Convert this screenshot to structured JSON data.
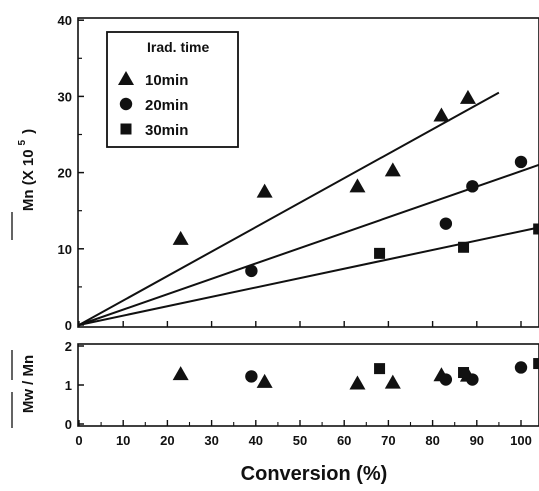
{
  "chart_data": [
    {
      "type": "scatter",
      "panel": "top",
      "ylabel": "Mn (X 10",
      "ylabel_exponent": "5",
      "ylabel_close": ")",
      "xlim": [
        0,
        104
      ],
      "ylim": [
        0,
        40
      ],
      "x_ticks": [
        0,
        10,
        20,
        30,
        40,
        50,
        60,
        70,
        80,
        90,
        100
      ],
      "y_ticks": [
        0,
        10,
        20,
        30,
        40
      ],
      "legend": {
        "title": "Irad. time",
        "placement": "top-left"
      },
      "series": [
        {
          "name": "10min",
          "marker": "triangle",
          "x": [
            23,
            42,
            63,
            71,
            82,
            88
          ],
          "y": [
            11.3,
            17.5,
            18.2,
            20.3,
            27.5,
            29.8
          ],
          "fit_line": {
            "x": [
              0,
              95
            ],
            "y": [
              0,
              30.5
            ]
          }
        },
        {
          "name": "20min",
          "marker": "circle",
          "x": [
            39,
            83,
            89,
            100
          ],
          "y": [
            7.1,
            13.3,
            18.2,
            21.4
          ],
          "fit_line": {
            "x": [
              0,
              104
            ],
            "y": [
              0,
              21
            ]
          }
        },
        {
          "name": "30min",
          "marker": "square",
          "x": [
            68,
            87,
            104
          ],
          "y": [
            9.4,
            10.2,
            12.6
          ],
          "fit_line": {
            "x": [
              0,
              104
            ],
            "y": [
              0,
              12.8
            ]
          }
        }
      ]
    },
    {
      "type": "scatter",
      "panel": "bottom",
      "xlabel": "Conversion (%)",
      "ylabel": "Mw / Mn",
      "xlim": [
        0,
        104
      ],
      "ylim": [
        0,
        2
      ],
      "x_ticks": [
        0,
        10,
        20,
        30,
        40,
        50,
        60,
        70,
        80,
        90,
        100
      ],
      "y_ticks": [
        0,
        1,
        2
      ],
      "series": [
        {
          "marker": "triangle",
          "x": [
            23,
            42,
            63,
            71,
            82,
            88
          ],
          "y": [
            1.28,
            1.08,
            1.04,
            1.06,
            1.25,
            1.24
          ]
        },
        {
          "marker": "circle",
          "x": [
            39,
            83,
            89,
            100
          ],
          "y": [
            1.22,
            1.14,
            1.14,
            1.45
          ]
        },
        {
          "marker": "square",
          "x": [
            68,
            87,
            104
          ],
          "y": [
            1.42,
            1.32,
            1.55
          ]
        }
      ]
    }
  ]
}
